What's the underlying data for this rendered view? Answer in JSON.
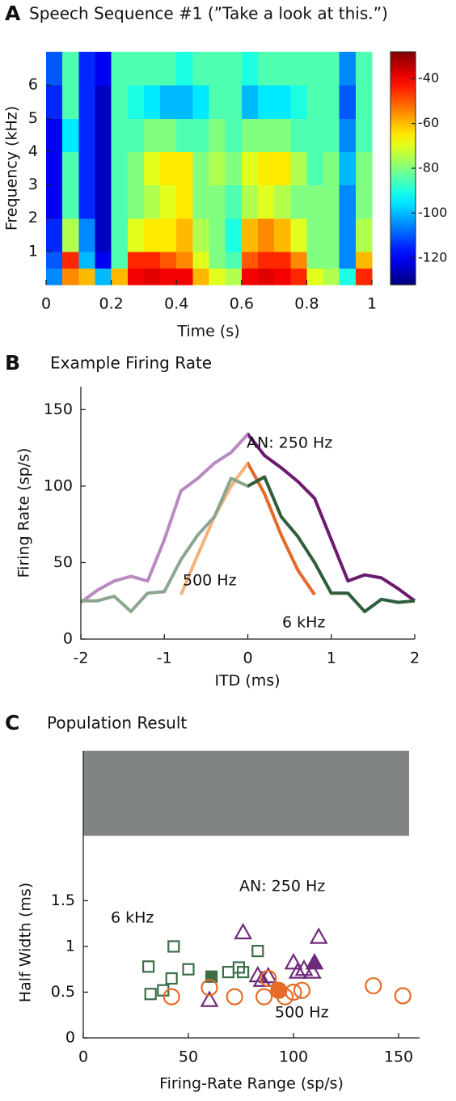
{
  "chart_data": [
    {
      "type": "heatmap",
      "panel": "A",
      "title": "Speech Sequence #1 (”Take a look at this.”)",
      "xlabel": "Time (s)",
      "ylabel": "Frequency (kHz)",
      "xlim": [
        0,
        1
      ],
      "xticks": [
        0,
        0.2,
        0.4,
        0.6,
        0.8,
        1
      ],
      "ylim": [
        0,
        7
      ],
      "yticks": [
        1,
        2,
        3,
        4,
        5,
        6
      ],
      "xbins": [
        0,
        0.05,
        0.1,
        0.15,
        0.2,
        0.25,
        0.3,
        0.35,
        0.4,
        0.45,
        0.5,
        0.55,
        0.6,
        0.65,
        0.7,
        0.75,
        0.8,
        0.85,
        0.9,
        0.95,
        1
      ],
      "ybins": [
        0,
        0.5,
        1,
        2,
        3,
        4,
        5,
        6,
        7
      ],
      "values": [
        [
          -105,
          -55,
          -60,
          -100,
          -60,
          -40,
          -38,
          -40,
          -40,
          -60,
          -70,
          -75,
          -40,
          -38,
          -40,
          -45,
          -70,
          -75,
          -90,
          -45
        ],
        [
          -110,
          -45,
          -100,
          -120,
          -85,
          -45,
          -45,
          -50,
          -55,
          -70,
          -80,
          -85,
          -50,
          -45,
          -45,
          -55,
          -80,
          -80,
          -105,
          -60
        ],
        [
          -115,
          -75,
          -105,
          -125,
          -85,
          -70,
          -65,
          -65,
          -60,
          -75,
          -80,
          -90,
          -60,
          -55,
          -60,
          -70,
          -80,
          -80,
          -105,
          -75
        ],
        [
          -120,
          -85,
          -115,
          -125,
          -85,
          -80,
          -75,
          -70,
          -65,
          -80,
          -80,
          -85,
          -75,
          -70,
          -75,
          -80,
          -80,
          -80,
          -105,
          -80
        ],
        [
          -120,
          -85,
          -115,
          -125,
          -85,
          -80,
          -70,
          -65,
          -65,
          -80,
          -75,
          -80,
          -70,
          -65,
          -65,
          -75,
          -85,
          -80,
          -100,
          -80
        ],
        [
          -120,
          -95,
          -115,
          -125,
          -85,
          -85,
          -80,
          -80,
          -85,
          -85,
          -80,
          -85,
          -80,
          -80,
          -80,
          -85,
          -85,
          -85,
          -105,
          -85
        ],
        [
          -115,
          -85,
          -115,
          -125,
          -85,
          -90,
          -95,
          -100,
          -100,
          -95,
          -85,
          -85,
          -100,
          -95,
          -95,
          -90,
          -85,
          -85,
          -110,
          -85
        ],
        [
          -110,
          -85,
          -115,
          -120,
          -85,
          -85,
          -85,
          -85,
          -90,
          -85,
          -85,
          -85,
          -90,
          -85,
          -85,
          -85,
          -85,
          -85,
          -105,
          -85
        ]
      ],
      "colormap": "jet",
      "clim": [
        -132,
        -28
      ],
      "cticks": [
        -120,
        -100,
        -80,
        -60,
        -40
      ]
    },
    {
      "type": "line",
      "panel": "B",
      "title": "Example Firing Rate",
      "xlabel": "ITD (ms)",
      "ylabel": "Firing Rate (sp/s)",
      "xlim": [
        -2,
        2
      ],
      "xticks": [
        -2,
        -1,
        0,
        1,
        2
      ],
      "ylim": [
        0,
        165
      ],
      "yticks": [
        0,
        50,
        100,
        150
      ],
      "series": [
        {
          "name": "AN: 250 Hz",
          "color": "#6a1b6f",
          "fade_color": "#b98ac2",
          "x": [
            -2,
            -1.8,
            -1.6,
            -1.4,
            -1.2,
            -1,
            -0.8,
            -0.6,
            -0.4,
            -0.2,
            0,
            0.2,
            0.4,
            0.6,
            0.8,
            1,
            1.2,
            1.4,
            1.6,
            1.8,
            2
          ],
          "values": [
            24,
            32,
            38,
            41,
            38,
            65,
            97,
            105,
            115,
            122,
            134,
            120,
            112,
            103,
            92,
            65,
            38,
            42,
            40,
            33,
            25
          ]
        },
        {
          "name": "500 Hz",
          "color": "#e4692a",
          "fade_color": "#f5b27a",
          "x": [
            -0.8,
            -0.6,
            -0.4,
            -0.2,
            0,
            0.2,
            0.4,
            0.6,
            0.8
          ],
          "values": [
            29,
            55,
            80,
            100,
            115,
            95,
            68,
            45,
            29
          ]
        },
        {
          "name": "6 kHz",
          "color": "#2f5e3b",
          "fade_color": "#8ba68f",
          "x": [
            -2,
            -1.8,
            -1.6,
            -1.4,
            -1.2,
            -1,
            -0.8,
            -0.6,
            -0.4,
            -0.2,
            0,
            0.2,
            0.4,
            0.6,
            0.8,
            1,
            1.2,
            1.4,
            1.6,
            1.8,
            2
          ],
          "values": [
            25,
            25,
            28,
            18,
            30,
            31,
            52,
            68,
            80,
            105,
            100,
            106,
            80,
            67,
            50,
            30,
            30,
            18,
            26,
            24,
            25
          ]
        }
      ]
    },
    {
      "type": "scatter",
      "panel": "C",
      "title": "Population Result",
      "xlabel": "Firing-Rate Range (sp/s)",
      "ylabel": "Half Width (ms)",
      "xlim": [
        0,
        160
      ],
      "xticks": [
        0,
        50,
        100,
        150
      ],
      "ylim": [
        0,
        3.14
      ],
      "yticks": [
        0,
        0.5,
        1,
        1.5
      ],
      "band": {
        "xlim": [
          0,
          155
        ],
        "ylim": [
          2.21,
          3.14
        ],
        "color": "#808583"
      },
      "series": [
        {
          "name": "AN: 250 Hz",
          "color": "#6e2a7a",
          "marker": "triangle",
          "filled_index": 10,
          "x": [
            60,
            76,
            83,
            85,
            88,
            100,
            102,
            105,
            109,
            112,
            110
          ],
          "values": [
            0.41,
            1.15,
            0.68,
            0.63,
            0.67,
            0.82,
            0.72,
            0.75,
            0.72,
            1.1,
            0.82
          ]
        },
        {
          "name": "6 kHz",
          "color": "#3c6e48",
          "marker": "square",
          "filled_index": 10,
          "x": [
            31,
            32,
            38,
            42,
            43,
            50,
            69,
            74,
            76,
            83,
            61
          ],
          "values": [
            0.78,
            0.48,
            0.52,
            0.65,
            1,
            0.75,
            0.72,
            0.77,
            0.72,
            0.95,
            0.67
          ]
        },
        {
          "name": "500 Hz",
          "color": "#e46c28",
          "marker": "circle",
          "filled_index": 10,
          "x": [
            42,
            60,
            72,
            86,
            88,
            96,
            100,
            104,
            138,
            152,
            93
          ],
          "values": [
            0.45,
            0.55,
            0.45,
            0.45,
            0.65,
            0.45,
            0.5,
            0.52,
            0.57,
            0.46,
            0.52
          ]
        }
      ]
    }
  ]
}
